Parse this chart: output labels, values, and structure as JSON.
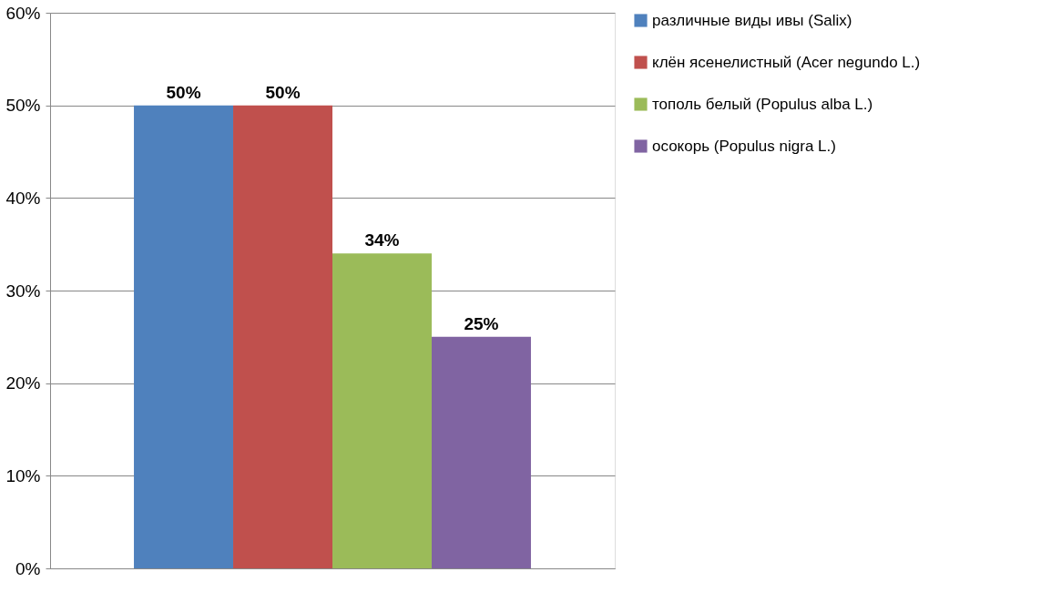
{
  "chart_data": {
    "type": "bar",
    "categories": [
      null
    ],
    "series": [
      {
        "name": "различные виды ивы (Salix)",
        "color": "#4f81bd",
        "values": [
          50
        ],
        "value_labels": [
          "50%"
        ]
      },
      {
        "name": "клён ясенелистный (Acer negundo L.)",
        "color": "#c0504d",
        "values": [
          50
        ],
        "value_labels": [
          "50%"
        ]
      },
      {
        "name": "тополь белый (Populus alba L.)",
        "color": "#9bbb59",
        "values": [
          34
        ],
        "value_labels": [
          "34%"
        ]
      },
      {
        "name": "осокорь (Populus nigra L.)",
        "color": "#8064a2",
        "values": [
          25
        ],
        "value_labels": [
          "25%"
        ]
      }
    ],
    "ylim": [
      0,
      60
    ],
    "yticks": [
      {
        "value": 0,
        "label": "0%"
      },
      {
        "value": 10,
        "label": "10%"
      },
      {
        "value": 20,
        "label": "20%"
      },
      {
        "value": 30,
        "label": "30%"
      },
      {
        "value": 40,
        "label": "40%"
      },
      {
        "value": 50,
        "label": "50%"
      },
      {
        "value": 60,
        "label": "60%"
      }
    ],
    "grid": "y",
    "legend": "right"
  }
}
